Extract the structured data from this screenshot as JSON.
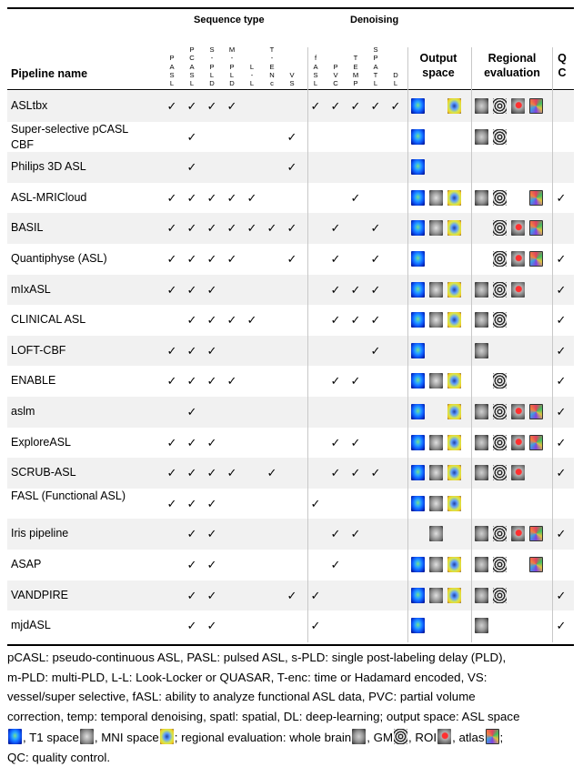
{
  "headers": {
    "pipeline_name": "Pipeline name",
    "sequence_type": "Sequence type",
    "denoising": "Denoising",
    "output_space": [
      "Output",
      "space"
    ],
    "regional_evaluation": [
      "Regional",
      "evaluation"
    ],
    "qc": [
      "Q",
      "C"
    ],
    "sequence_columns": [
      {
        "letters": [
          "P",
          "A",
          "S",
          "L"
        ]
      },
      {
        "letters": [
          "P",
          "C",
          "A",
          "S",
          "L"
        ]
      },
      {
        "letters": [
          "S",
          "-",
          "P",
          "L",
          "D"
        ]
      },
      {
        "letters": [
          "M",
          "-",
          "P",
          "L",
          "D"
        ]
      },
      {
        "letters": [
          "L",
          "-",
          "L"
        ]
      },
      {
        "letters": [
          "T",
          "-",
          "E",
          "N",
          "c"
        ]
      },
      {
        "letters": [
          "V",
          "S"
        ]
      }
    ],
    "denoising_columns": [
      {
        "letters": [
          "f",
          "A",
          "S",
          "L"
        ]
      },
      {
        "letters": [
          "P",
          "V",
          "C"
        ]
      },
      {
        "letters": [
          "T",
          "E",
          "M",
          "P"
        ]
      },
      {
        "letters": [
          "S",
          "P",
          "A",
          "T",
          "L"
        ]
      },
      {
        "letters": [
          "D",
          "L"
        ]
      }
    ]
  },
  "check_mark": "✓",
  "rows": [
    {
      "name": "ASLtbx",
      "seq": [
        1,
        1,
        1,
        1,
        0,
        0,
        0
      ],
      "den": [
        1,
        1,
        1,
        1,
        1
      ],
      "out": [
        "asl",
        "",
        "mni"
      ],
      "reg": [
        "wb",
        "gm",
        "roi",
        "atlas"
      ],
      "qc": 0
    },
    {
      "name": "Super-selective pCASL CBF",
      "seq": [
        0,
        1,
        0,
        0,
        0,
        0,
        1
      ],
      "den": [
        0,
        0,
        0,
        0,
        0
      ],
      "out": [
        "asl",
        "",
        ""
      ],
      "reg": [
        "wb",
        "gm",
        "",
        ""
      ],
      "qc": 0
    },
    {
      "name": "Philips 3D ASL",
      "seq": [
        0,
        1,
        0,
        0,
        0,
        0,
        1
      ],
      "den": [
        0,
        0,
        0,
        0,
        0
      ],
      "out": [
        "asl",
        "",
        ""
      ],
      "reg": [
        "",
        "",
        "",
        ""
      ],
      "qc": 0
    },
    {
      "name": "ASL-MRICloud",
      "seq": [
        1,
        1,
        1,
        1,
        1,
        0,
        0
      ],
      "den": [
        0,
        0,
        1,
        0,
        0
      ],
      "out": [
        "asl",
        "t1",
        "mni"
      ],
      "reg": [
        "wb",
        "gm",
        "",
        "atlas"
      ],
      "qc": 1
    },
    {
      "name": "BASIL",
      "seq": [
        1,
        1,
        1,
        1,
        1,
        1,
        1
      ],
      "den": [
        0,
        1,
        0,
        1,
        0
      ],
      "out": [
        "asl",
        "t1",
        "mni"
      ],
      "reg": [
        "",
        "gm",
        "roi",
        "atlas"
      ],
      "qc": 0
    },
    {
      "name": "Quantiphyse (ASL)",
      "seq": [
        1,
        1,
        1,
        1,
        0,
        0,
        1
      ],
      "den": [
        0,
        1,
        0,
        1,
        0
      ],
      "out": [
        "asl",
        "",
        ""
      ],
      "reg": [
        "",
        "gm",
        "roi",
        "atlas"
      ],
      "qc": 1
    },
    {
      "name": "mIxASL",
      "seq": [
        1,
        1,
        1,
        0,
        0,
        0,
        0
      ],
      "den": [
        0,
        1,
        1,
        1,
        0
      ],
      "out": [
        "asl",
        "t1",
        "mni"
      ],
      "reg": [
        "wb",
        "gm",
        "roi",
        ""
      ],
      "qc": 1
    },
    {
      "name": "CLINICAL ASL",
      "seq": [
        0,
        1,
        1,
        1,
        1,
        0,
        0
      ],
      "den": [
        0,
        1,
        1,
        1,
        0
      ],
      "out": [
        "asl",
        "t1",
        "mni"
      ],
      "reg": [
        "wb",
        "gm",
        "",
        ""
      ],
      "qc": 1
    },
    {
      "name": "LOFT-CBF",
      "seq": [
        1,
        1,
        1,
        0,
        0,
        0,
        0
      ],
      "den": [
        0,
        0,
        0,
        1,
        0
      ],
      "out": [
        "asl",
        "",
        ""
      ],
      "reg": [
        "wb",
        "",
        "",
        ""
      ],
      "qc": 1
    },
    {
      "name": "ENABLE",
      "seq": [
        1,
        1,
        1,
        1,
        0,
        0,
        0
      ],
      "den": [
        0,
        1,
        1,
        0,
        0
      ],
      "out": [
        "asl",
        "t1",
        "mni"
      ],
      "reg": [
        "",
        "gm",
        "",
        ""
      ],
      "qc": 1
    },
    {
      "name": "aslm",
      "seq": [
        0,
        1,
        0,
        0,
        0,
        0,
        0
      ],
      "den": [
        0,
        0,
        0,
        0,
        0
      ],
      "out": [
        "asl",
        "",
        "mni"
      ],
      "reg": [
        "wb",
        "gm",
        "roi",
        "atlas"
      ],
      "qc": 1
    },
    {
      "name": "ExploreASL",
      "seq": [
        1,
        1,
        1,
        0,
        0,
        0,
        0
      ],
      "den": [
        0,
        1,
        1,
        0,
        0
      ],
      "out": [
        "asl",
        "t1",
        "mni"
      ],
      "reg": [
        "wb",
        "gm",
        "roi",
        "atlas"
      ],
      "qc": 1
    },
    {
      "name": "SCRUB-ASL",
      "seq": [
        1,
        1,
        1,
        1,
        0,
        1,
        0
      ],
      "den": [
        0,
        1,
        1,
        1,
        0
      ],
      "out": [
        "asl",
        "t1",
        "mni"
      ],
      "reg": [
        "wb",
        "gm",
        "roi",
        ""
      ],
      "qc": 1
    },
    {
      "name": "FASL (Functional ASL)",
      "seq": [
        1,
        1,
        1,
        0,
        0,
        0,
        0
      ],
      "den": [
        1,
        0,
        0,
        0,
        0
      ],
      "out": [
        "asl",
        "t1",
        "mni"
      ],
      "reg": [
        "",
        "",
        "",
        ""
      ],
      "qc": 0
    },
    {
      "name": "Iris pipeline",
      "seq": [
        0,
        1,
        1,
        0,
        0,
        0,
        0
      ],
      "den": [
        0,
        1,
        1,
        0,
        0
      ],
      "out": [
        "",
        "t1",
        ""
      ],
      "reg": [
        "wb",
        "gm",
        "roi",
        "atlas"
      ],
      "qc": 1
    },
    {
      "name": "ASAP",
      "seq": [
        0,
        1,
        1,
        0,
        0,
        0,
        0
      ],
      "den": [
        0,
        1,
        0,
        0,
        0
      ],
      "out": [
        "asl",
        "t1",
        "mni"
      ],
      "reg": [
        "wb",
        "gm",
        "",
        "atlas"
      ],
      "qc": 0
    },
    {
      "name": "VANDPIRE",
      "seq": [
        0,
        1,
        1,
        0,
        0,
        0,
        1
      ],
      "den": [
        1,
        0,
        0,
        0,
        0
      ],
      "out": [
        "asl",
        "t1",
        "mni"
      ],
      "reg": [
        "wb",
        "gm",
        "",
        ""
      ],
      "qc": 1
    },
    {
      "name": "mjdASL",
      "seq": [
        0,
        1,
        1,
        0,
        0,
        0,
        0
      ],
      "den": [
        1,
        0,
        0,
        0,
        0
      ],
      "out": [
        "asl",
        "",
        ""
      ],
      "reg": [
        "wb",
        "",
        "",
        ""
      ],
      "qc": 1
    }
  ],
  "caption": {
    "line1": "pCASL: pseudo-continuous ASL, PASL: pulsed ASL, s-PLD: single post-labeling delay (PLD),",
    "line2": "m-PLD: multi-PLD, L-L: Look-Locker or QUASAR, T-enc: time  or Hadamard encoded, VS:",
    "line3": "vessel/super selective, fASL: ability to analyze functional ASL data, PVC: partial volume",
    "line4": "correction, temp: temporal denoising, spatl: spatial, DL: deep-learning; output space: ASL space",
    "line5_a": ", T1 space",
    "line5_b": ", MNI space",
    "line5_c": "; regional evaluation: whole brain",
    "line5_d": ", GM",
    "line5_e": ", ROI",
    "line5_f": ", atlas",
    "line5_g": ";",
    "line6": "QC: quality control."
  }
}
